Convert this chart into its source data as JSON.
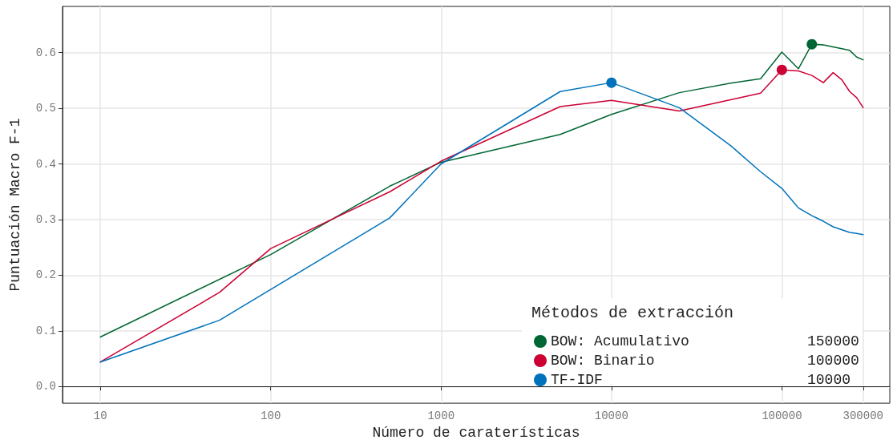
{
  "chart_data": {
    "type": "line",
    "xlabel": "Número de caraterísticas",
    "ylabel": "Puntuación Macro F-1",
    "legend_title": "Métodos de extracción",
    "log": "x",
    "grid": true,
    "legend": "bottom right",
    "marker": "none",
    "line_style": "solid",
    "xlim": [
      6,
      430000
    ],
    "xticks": [
      10,
      100,
      1000,
      10000,
      100000,
      300000
    ],
    "ylim": [
      -0.03,
      0.683
    ],
    "yticks": [
      {
        "value": 0,
        "label": "0.0"
      },
      0.1,
      0.2,
      0.3,
      0.4,
      0.5,
      0.6
    ],
    "annotations": [
      "150000",
      "100000",
      "10000"
    ],
    "series": [
      {
        "name": "BOW: Acumulativo",
        "color": "#006633",
        "x": [
          10,
          100,
          500,
          1000,
          5000,
          10000,
          25000,
          50000,
          75000,
          100000,
          125000,
          150000,
          175000,
          250000,
          275000,
          300000
        ],
        "values": [
          0.089,
          0.237,
          0.36,
          0.403,
          0.453,
          0.489,
          0.528,
          0.545,
          0.553,
          0.601,
          0.571,
          0.615,
          0.614,
          0.604,
          0.592,
          0.587
        ]
      },
      {
        "name": "BOW: Binario",
        "color": "#cc0033",
        "x": [
          10,
          50,
          100,
          500,
          1000,
          5000,
          10000,
          25000,
          75000,
          100000,
          125000,
          150000,
          175000,
          200000,
          225000,
          250000,
          275000,
          300000
        ],
        "values": [
          0.044,
          0.169,
          0.248,
          0.35,
          0.405,
          0.503,
          0.514,
          0.495,
          0.527,
          0.569,
          0.567,
          0.559,
          0.546,
          0.564,
          0.551,
          0.53,
          0.519,
          0.501
        ]
      },
      {
        "name": "TF-IDF",
        "color": "#0072bb",
        "x": [
          10,
          50,
          500,
          1000,
          5000,
          10000,
          25000,
          50000,
          75000,
          100000,
          125000,
          150000,
          175000,
          200000,
          250000,
          275000,
          300000
        ],
        "values": [
          0.044,
          0.119,
          0.303,
          0.4,
          0.53,
          0.546,
          0.501,
          0.433,
          0.386,
          0.356,
          0.321,
          0.307,
          0.297,
          0.287,
          0.277,
          0.275,
          0.273
        ]
      },
      {
        "type": "scatter",
        "marker": "circle",
        "x": [
          150000,
          100000,
          10000
        ],
        "values": [
          0.615,
          0.569,
          0.546
        ],
        "colors": [
          "#006633",
          "#cc0033",
          "#0072bb"
        ]
      }
    ]
  }
}
